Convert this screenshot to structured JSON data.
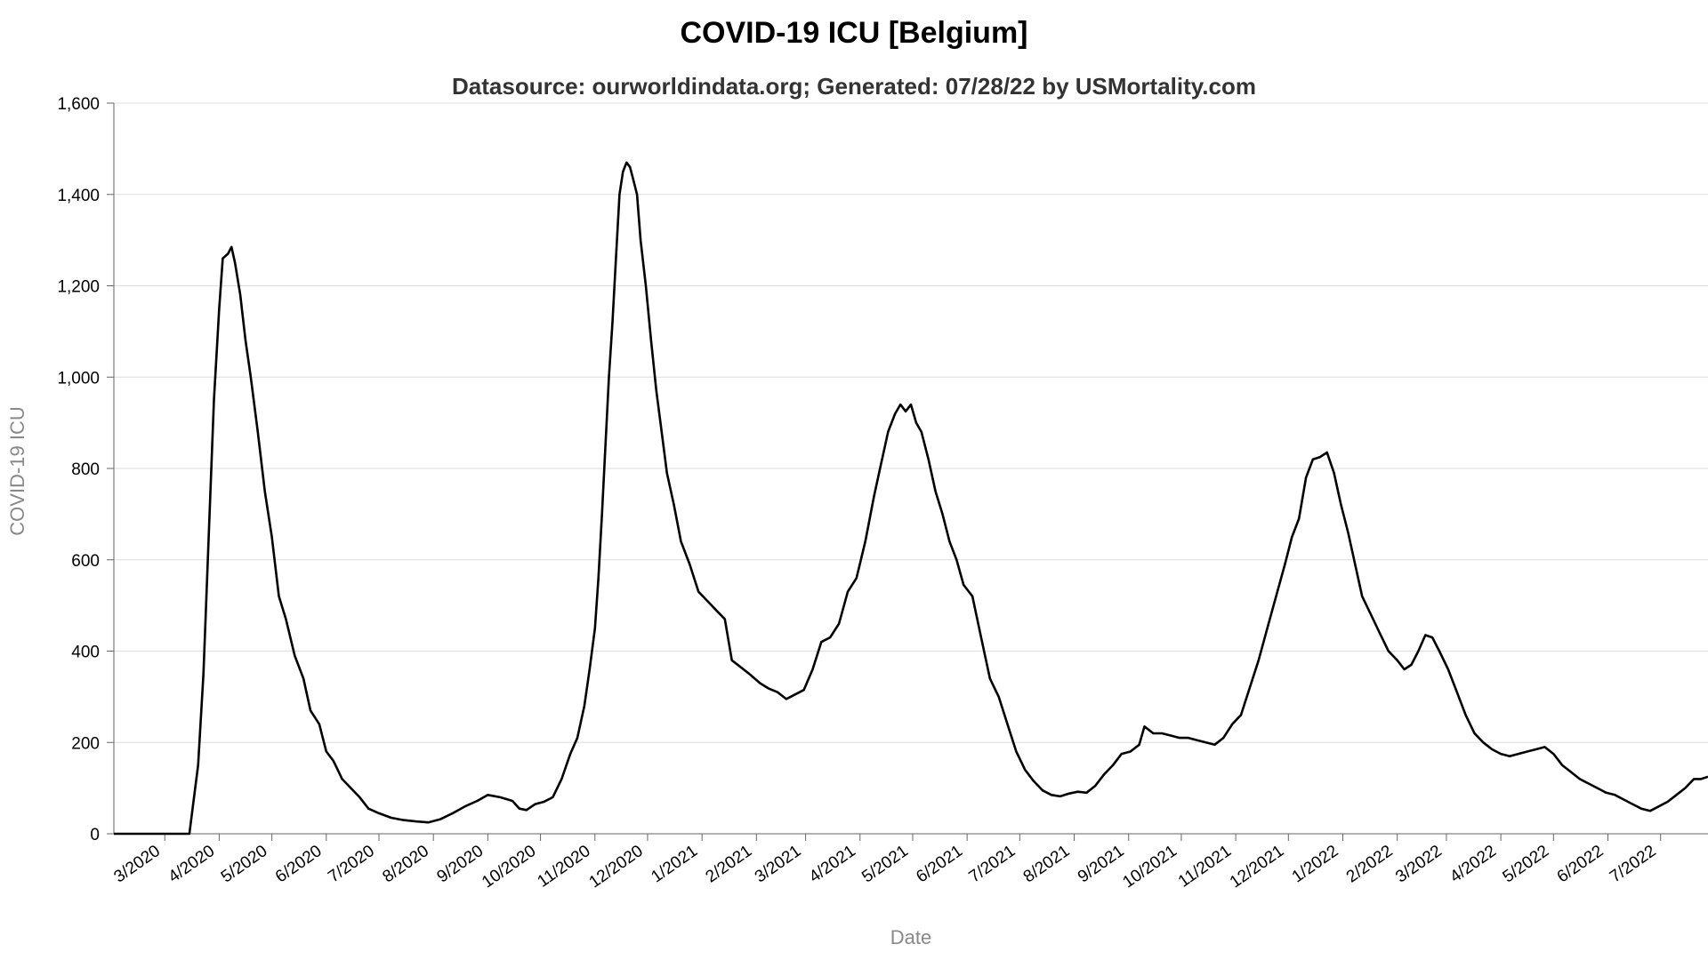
{
  "chart_data": {
    "type": "line",
    "title": "COVID-19 ICU [Belgium]",
    "subtitle": "Datasource: ourworldindata.org; Generated: 07/28/22 by USMortality.com",
    "xlabel": "Date",
    "ylabel": "COVID-19 ICU",
    "ylim": [
      0,
      1600
    ],
    "yticks": [
      0,
      200,
      400,
      600,
      800,
      1000,
      1200,
      1400,
      1600
    ],
    "ytick_labels": [
      "0",
      "200",
      "400",
      "600",
      "800",
      "1,000",
      "1,200",
      "1,400",
      "1,600"
    ],
    "xlim": [
      "2020-02-01",
      "2022-07-28"
    ],
    "xticks": [
      "2020-03-01",
      "2020-04-01",
      "2020-05-01",
      "2020-06-01",
      "2020-07-01",
      "2020-08-01",
      "2020-09-01",
      "2020-10-01",
      "2020-11-01",
      "2020-12-01",
      "2021-01-01",
      "2021-02-01",
      "2021-03-01",
      "2021-04-01",
      "2021-05-01",
      "2021-06-01",
      "2021-07-01",
      "2021-08-01",
      "2021-09-01",
      "2021-10-01",
      "2021-11-01",
      "2021-12-01",
      "2022-01-01",
      "2022-02-01",
      "2022-03-01",
      "2022-04-01",
      "2022-05-01",
      "2022-06-01",
      "2022-07-01"
    ],
    "xtick_labels": [
      "3/2020",
      "4/2020",
      "5/2020",
      "6/2020",
      "7/2020",
      "8/2020",
      "9/2020",
      "10/2020",
      "11/2020",
      "12/2020",
      "1/2021",
      "2/2021",
      "3/2021",
      "4/2021",
      "5/2021",
      "6/2021",
      "7/2021",
      "8/2021",
      "9/2021",
      "10/2021",
      "11/2021",
      "12/2021",
      "1/2022",
      "2/2022",
      "3/2022",
      "4/2022",
      "5/2022",
      "6/2022",
      "7/2022"
    ],
    "grid": true,
    "legend": "none",
    "series": [
      {
        "color": "#000000",
        "points": [
          [
            "2020-02-01",
            0
          ],
          [
            "2020-03-15",
            0
          ],
          [
            "2020-03-17",
            60
          ],
          [
            "2020-03-20",
            150
          ],
          [
            "2020-03-23",
            350
          ],
          [
            "2020-03-26",
            650
          ],
          [
            "2020-03-29",
            950
          ],
          [
            "2020-04-01",
            1150
          ],
          [
            "2020-04-03",
            1260
          ],
          [
            "2020-04-06",
            1270
          ],
          [
            "2020-04-08",
            1285
          ],
          [
            "2020-04-10",
            1250
          ],
          [
            "2020-04-13",
            1180
          ],
          [
            "2020-04-16",
            1080
          ],
          [
            "2020-04-19",
            1000
          ],
          [
            "2020-04-23",
            880
          ],
          [
            "2020-04-27",
            750
          ],
          [
            "2020-05-01",
            650
          ],
          [
            "2020-05-05",
            520
          ],
          [
            "2020-05-09",
            470
          ],
          [
            "2020-05-14",
            390
          ],
          [
            "2020-05-19",
            340
          ],
          [
            "2020-05-23",
            270
          ],
          [
            "2020-05-28",
            240
          ],
          [
            "2020-06-01",
            180
          ],
          [
            "2020-06-05",
            160
          ],
          [
            "2020-06-10",
            120
          ],
          [
            "2020-06-15",
            100
          ],
          [
            "2020-06-20",
            80
          ],
          [
            "2020-06-25",
            55
          ],
          [
            "2020-07-01",
            45
          ],
          [
            "2020-07-08",
            35
          ],
          [
            "2020-07-15",
            30
          ],
          [
            "2020-07-22",
            27
          ],
          [
            "2020-07-29",
            25
          ],
          [
            "2020-08-05",
            32
          ],
          [
            "2020-08-12",
            45
          ],
          [
            "2020-08-19",
            60
          ],
          [
            "2020-08-26",
            72
          ],
          [
            "2020-09-01",
            85
          ],
          [
            "2020-09-08",
            80
          ],
          [
            "2020-09-15",
            72
          ],
          [
            "2020-09-19",
            55
          ],
          [
            "2020-09-23",
            52
          ],
          [
            "2020-09-28",
            65
          ],
          [
            "2020-10-03",
            70
          ],
          [
            "2020-10-08",
            80
          ],
          [
            "2020-10-13",
            120
          ],
          [
            "2020-10-18",
            175
          ],
          [
            "2020-10-22",
            210
          ],
          [
            "2020-10-26",
            280
          ],
          [
            "2020-10-29",
            360
          ],
          [
            "2020-11-01",
            450
          ],
          [
            "2020-11-03",
            560
          ],
          [
            "2020-11-05",
            700
          ],
          [
            "2020-11-07",
            850
          ],
          [
            "2020-11-09",
            1000
          ],
          [
            "2020-11-11",
            1120
          ],
          [
            "2020-11-13",
            1260
          ],
          [
            "2020-11-15",
            1400
          ],
          [
            "2020-11-17",
            1450
          ],
          [
            "2020-11-19",
            1470
          ],
          [
            "2020-11-21",
            1460
          ],
          [
            "2020-11-23",
            1430
          ],
          [
            "2020-11-25",
            1400
          ],
          [
            "2020-11-27",
            1300
          ],
          [
            "2020-11-30",
            1200
          ],
          [
            "2020-12-03",
            1080
          ],
          [
            "2020-12-06",
            970
          ],
          [
            "2020-12-09",
            880
          ],
          [
            "2020-12-12",
            790
          ],
          [
            "2020-12-16",
            720
          ],
          [
            "2020-12-20",
            640
          ],
          [
            "2020-12-25",
            590
          ],
          [
            "2020-12-30",
            530
          ],
          [
            "2021-01-04",
            510
          ],
          [
            "2021-01-09",
            490
          ],
          [
            "2021-01-14",
            470
          ],
          [
            "2021-01-18",
            380
          ],
          [
            "2021-01-23",
            365
          ],
          [
            "2021-01-28",
            350
          ],
          [
            "2021-02-03",
            330
          ],
          [
            "2021-02-08",
            318
          ],
          [
            "2021-02-13",
            310
          ],
          [
            "2021-02-18",
            295
          ],
          [
            "2021-02-23",
            305
          ],
          [
            "2021-02-28",
            315
          ],
          [
            "2021-03-05",
            360
          ],
          [
            "2021-03-10",
            420
          ],
          [
            "2021-03-15",
            430
          ],
          [
            "2021-03-20",
            460
          ],
          [
            "2021-03-25",
            530
          ],
          [
            "2021-03-30",
            560
          ],
          [
            "2021-04-04",
            640
          ],
          [
            "2021-04-09",
            740
          ],
          [
            "2021-04-13",
            810
          ],
          [
            "2021-04-17",
            880
          ],
          [
            "2021-04-21",
            920
          ],
          [
            "2021-04-24",
            940
          ],
          [
            "2021-04-27",
            925
          ],
          [
            "2021-04-30",
            940
          ],
          [
            "2021-05-03",
            900
          ],
          [
            "2021-05-06",
            880
          ],
          [
            "2021-05-10",
            820
          ],
          [
            "2021-05-14",
            750
          ],
          [
            "2021-05-18",
            700
          ],
          [
            "2021-05-22",
            640
          ],
          [
            "2021-05-26",
            600
          ],
          [
            "2021-05-30",
            545
          ],
          [
            "2021-06-04",
            520
          ],
          [
            "2021-06-09",
            430
          ],
          [
            "2021-06-14",
            340
          ],
          [
            "2021-06-19",
            300
          ],
          [
            "2021-06-24",
            240
          ],
          [
            "2021-06-29",
            180
          ],
          [
            "2021-07-04",
            140
          ],
          [
            "2021-07-09",
            115
          ],
          [
            "2021-07-14",
            95
          ],
          [
            "2021-07-19",
            85
          ],
          [
            "2021-07-24",
            82
          ],
          [
            "2021-07-29",
            88
          ],
          [
            "2021-08-03",
            92
          ],
          [
            "2021-08-08",
            90
          ],
          [
            "2021-08-13",
            105
          ],
          [
            "2021-08-18",
            130
          ],
          [
            "2021-08-23",
            150
          ],
          [
            "2021-08-28",
            175
          ],
          [
            "2021-09-02",
            180
          ],
          [
            "2021-09-07",
            195
          ],
          [
            "2021-09-10",
            235
          ],
          [
            "2021-09-15",
            220
          ],
          [
            "2021-09-20",
            220
          ],
          [
            "2021-09-25",
            215
          ],
          [
            "2021-09-30",
            210
          ],
          [
            "2021-10-05",
            210
          ],
          [
            "2021-10-10",
            205
          ],
          [
            "2021-10-15",
            200
          ],
          [
            "2021-10-20",
            195
          ],
          [
            "2021-10-25",
            210
          ],
          [
            "2021-10-30",
            240
          ],
          [
            "2021-11-04",
            260
          ],
          [
            "2021-11-09",
            320
          ],
          [
            "2021-11-14",
            380
          ],
          [
            "2021-11-19",
            450
          ],
          [
            "2021-11-24",
            520
          ],
          [
            "2021-11-29",
            590
          ],
          [
            "2021-12-03",
            650
          ],
          [
            "2021-12-07",
            690
          ],
          [
            "2021-12-11",
            780
          ],
          [
            "2021-12-15",
            820
          ],
          [
            "2021-12-19",
            825
          ],
          [
            "2021-12-23",
            835
          ],
          [
            "2021-12-27",
            790
          ],
          [
            "2021-12-31",
            720
          ],
          [
            "2022-01-04",
            660
          ],
          [
            "2022-01-08",
            590
          ],
          [
            "2022-01-12",
            520
          ],
          [
            "2022-01-17",
            480
          ],
          [
            "2022-01-22",
            440
          ],
          [
            "2022-01-27",
            400
          ],
          [
            "2022-02-01",
            380
          ],
          [
            "2022-02-05",
            360
          ],
          [
            "2022-02-09",
            370
          ],
          [
            "2022-02-13",
            400
          ],
          [
            "2022-02-17",
            435
          ],
          [
            "2022-02-21",
            430
          ],
          [
            "2022-02-25",
            400
          ],
          [
            "2022-03-02",
            360
          ],
          [
            "2022-03-07",
            310
          ],
          [
            "2022-03-12",
            260
          ],
          [
            "2022-03-17",
            220
          ],
          [
            "2022-03-22",
            200
          ],
          [
            "2022-03-27",
            185
          ],
          [
            "2022-04-01",
            175
          ],
          [
            "2022-04-06",
            170
          ],
          [
            "2022-04-11",
            175
          ],
          [
            "2022-04-16",
            180
          ],
          [
            "2022-04-21",
            185
          ],
          [
            "2022-04-26",
            190
          ],
          [
            "2022-05-01",
            175
          ],
          [
            "2022-05-06",
            150
          ],
          [
            "2022-05-11",
            135
          ],
          [
            "2022-05-16",
            120
          ],
          [
            "2022-05-21",
            110
          ],
          [
            "2022-05-26",
            100
          ],
          [
            "2022-05-31",
            90
          ],
          [
            "2022-06-05",
            85
          ],
          [
            "2022-06-10",
            75
          ],
          [
            "2022-06-15",
            65
          ],
          [
            "2022-06-20",
            55
          ],
          [
            "2022-06-25",
            50
          ],
          [
            "2022-06-30",
            60
          ],
          [
            "2022-07-05",
            70
          ],
          [
            "2022-07-10",
            85
          ],
          [
            "2022-07-15",
            100
          ],
          [
            "2022-07-20",
            120
          ],
          [
            "2022-07-24",
            120
          ],
          [
            "2022-07-28",
            125
          ]
        ]
      }
    ]
  }
}
